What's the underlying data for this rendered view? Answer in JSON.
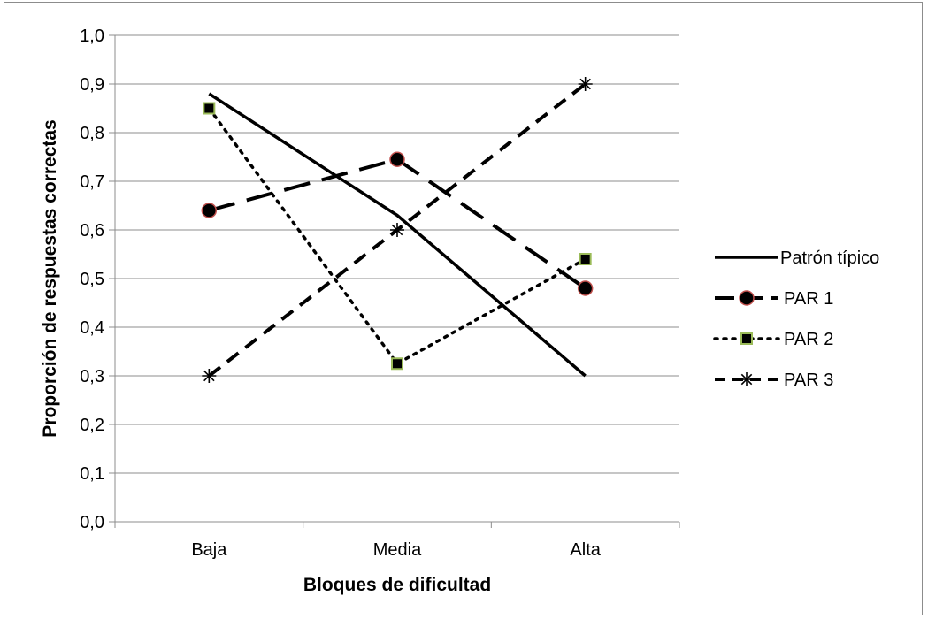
{
  "chart_data": {
    "type": "line",
    "title": "",
    "xlabel": "Bloques de dificultad",
    "ylabel": "Proporción de respuestas correctas",
    "categories": [
      "Baja",
      "Media",
      "Alta"
    ],
    "ylim": [
      0,
      1
    ],
    "yticks": [
      "0,0",
      "0,1",
      "0,2",
      "0,3",
      "0,4",
      "0,5",
      "0,6",
      "0,7",
      "0,8",
      "0,9",
      "1,0"
    ],
    "grid": true,
    "legend_position": "right",
    "series": [
      {
        "name": "Patrón típico",
        "values": [
          0.88,
          0.63,
          0.3
        ],
        "line_style": "solid",
        "marker": "none",
        "color": "#000000"
      },
      {
        "name": "PAR 1",
        "values": [
          0.64,
          0.745,
          0.48
        ],
        "line_style": "long-dash",
        "marker": "circle",
        "color": "#000000",
        "marker_edge": "#c0504d"
      },
      {
        "name": "PAR 2",
        "values": [
          0.85,
          0.325,
          0.54
        ],
        "line_style": "dotted",
        "marker": "square",
        "color": "#000000",
        "marker_edge": "#9bbb59"
      },
      {
        "name": "PAR 3",
        "values": [
          0.3,
          0.6,
          0.9
        ],
        "line_style": "dashed",
        "marker": "star",
        "color": "#000000"
      }
    ]
  }
}
